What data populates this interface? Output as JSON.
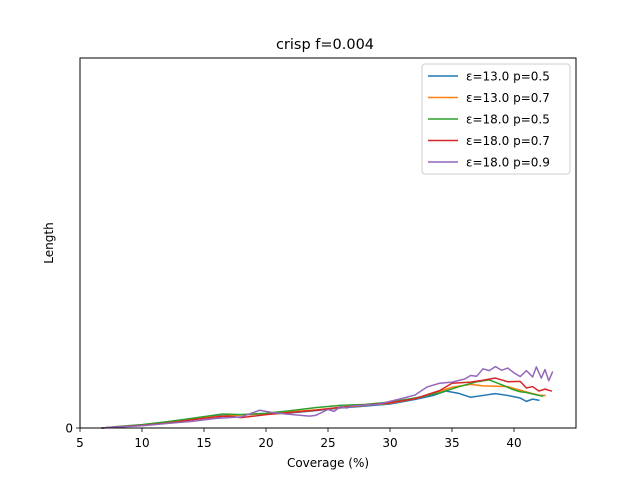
{
  "chart_data": {
    "type": "line",
    "title": "crisp f=0.004",
    "xlabel": "Coverage (%)",
    "ylabel": "Length",
    "xlim": [
      5,
      45
    ],
    "ylim": [
      0,
      1
    ],
    "xticks": [
      5,
      10,
      15,
      20,
      25,
      30,
      35,
      40
    ],
    "yticks": [
      0
    ],
    "legend_position": "top-right",
    "grid": false,
    "series": [
      {
        "name": "ε=13.0 p=0.5",
        "color": "#1f77b4",
        "points": [
          [
            6.8,
            0.0
          ],
          [
            8,
            0.003
          ],
          [
            10,
            0.008
          ],
          [
            12,
            0.015
          ],
          [
            14,
            0.024
          ],
          [
            16,
            0.033
          ],
          [
            18,
            0.036
          ],
          [
            20,
            0.038
          ],
          [
            22,
            0.041
          ],
          [
            24,
            0.047
          ],
          [
            26,
            0.054
          ],
          [
            28,
            0.059
          ],
          [
            30,
            0.065
          ],
          [
            32,
            0.077
          ],
          [
            33.5,
            0.088
          ],
          [
            34.5,
            0.1
          ],
          [
            35.5,
            0.094
          ],
          [
            36.5,
            0.083
          ],
          [
            37.5,
            0.088
          ],
          [
            38.5,
            0.093
          ],
          [
            39.5,
            0.088
          ],
          [
            40.5,
            0.081
          ],
          [
            41,
            0.072
          ],
          [
            41.5,
            0.078
          ],
          [
            42,
            0.075
          ]
        ]
      },
      {
        "name": "ε=13.0 p=0.7",
        "color": "#ff7f0e",
        "points": [
          [
            6.8,
            0.0
          ],
          [
            8,
            0.003
          ],
          [
            10,
            0.008
          ],
          [
            12,
            0.015
          ],
          [
            14,
            0.024
          ],
          [
            16,
            0.031
          ],
          [
            18,
            0.035
          ],
          [
            20,
            0.039
          ],
          [
            22,
            0.044
          ],
          [
            24,
            0.049
          ],
          [
            26,
            0.055
          ],
          [
            28,
            0.061
          ],
          [
            30,
            0.067
          ],
          [
            32,
            0.079
          ],
          [
            33.5,
            0.094
          ],
          [
            35,
            0.11
          ],
          [
            36.5,
            0.118
          ],
          [
            37.5,
            0.114
          ],
          [
            38.5,
            0.113
          ],
          [
            39.5,
            0.112
          ],
          [
            40.5,
            0.102
          ],
          [
            41.5,
            0.093
          ],
          [
            42,
            0.089
          ],
          [
            42.5,
            0.088
          ]
        ]
      },
      {
        "name": "ε=18.0 p=0.5",
        "color": "#2ca02c",
        "points": [
          [
            6.8,
            0.0
          ],
          [
            8,
            0.004
          ],
          [
            10,
            0.009
          ],
          [
            12,
            0.017
          ],
          [
            14,
            0.026
          ],
          [
            16.5,
            0.038
          ],
          [
            18,
            0.036
          ],
          [
            20,
            0.04
          ],
          [
            22,
            0.047
          ],
          [
            24,
            0.055
          ],
          [
            26,
            0.061
          ],
          [
            28,
            0.064
          ],
          [
            30,
            0.07
          ],
          [
            32,
            0.081
          ],
          [
            34,
            0.095
          ],
          [
            35.5,
            0.111
          ],
          [
            37,
            0.125
          ],
          [
            38,
            0.13
          ],
          [
            39,
            0.117
          ],
          [
            40,
            0.103
          ],
          [
            40.5,
            0.098
          ],
          [
            41,
            0.096
          ],
          [
            41.5,
            0.092
          ],
          [
            42,
            0.088
          ],
          [
            42.3,
            0.086
          ]
        ]
      },
      {
        "name": "ε=18.0 p=0.7",
        "color": "#d62728",
        "points": [
          [
            6.8,
            0.0
          ],
          [
            8,
            0.003
          ],
          [
            10,
            0.007
          ],
          [
            12,
            0.013
          ],
          [
            14,
            0.022
          ],
          [
            16,
            0.03
          ],
          [
            17,
            0.032
          ],
          [
            18,
            0.028
          ],
          [
            19,
            0.032
          ],
          [
            20,
            0.036
          ],
          [
            22,
            0.042
          ],
          [
            24,
            0.048
          ],
          [
            26,
            0.056
          ],
          [
            28,
            0.062
          ],
          [
            30,
            0.068
          ],
          [
            32,
            0.079
          ],
          [
            34,
            0.101
          ],
          [
            35,
            0.121
          ],
          [
            36.5,
            0.124
          ],
          [
            37.5,
            0.129
          ],
          [
            38.5,
            0.135
          ],
          [
            39.5,
            0.125
          ],
          [
            40.5,
            0.126
          ],
          [
            41,
            0.108
          ],
          [
            41.5,
            0.112
          ],
          [
            42,
            0.1
          ],
          [
            42.5,
            0.105
          ],
          [
            43,
            0.1
          ]
        ]
      },
      {
        "name": "ε=18.0 p=0.9",
        "color": "#9467bd",
        "points": [
          [
            6.8,
            0.0
          ],
          [
            8,
            0.003
          ],
          [
            10,
            0.006
          ],
          [
            12,
            0.012
          ],
          [
            14,
            0.018
          ],
          [
            16,
            0.026
          ],
          [
            18,
            0.03
          ],
          [
            19.5,
            0.048
          ],
          [
            20.5,
            0.042
          ],
          [
            21.5,
            0.038
          ],
          [
            22.5,
            0.035
          ],
          [
            23.5,
            0.032
          ],
          [
            24,
            0.034
          ],
          [
            25,
            0.05
          ],
          [
            25.5,
            0.045
          ],
          [
            26,
            0.058
          ],
          [
            26.5,
            0.054
          ],
          [
            27,
            0.06
          ],
          [
            28,
            0.062
          ],
          [
            29,
            0.064
          ],
          [
            30,
            0.072
          ],
          [
            31,
            0.08
          ],
          [
            32,
            0.089
          ],
          [
            33,
            0.111
          ],
          [
            34,
            0.121
          ],
          [
            35,
            0.124
          ],
          [
            36,
            0.132
          ],
          [
            36.5,
            0.142
          ],
          [
            37,
            0.14
          ],
          [
            37.5,
            0.16
          ],
          [
            38,
            0.155
          ],
          [
            38.5,
            0.166
          ],
          [
            39,
            0.156
          ],
          [
            39.5,
            0.162
          ],
          [
            40,
            0.149
          ],
          [
            40.5,
            0.139
          ],
          [
            41,
            0.155
          ],
          [
            41.5,
            0.138
          ],
          [
            41.8,
            0.165
          ],
          [
            42.2,
            0.135
          ],
          [
            42.5,
            0.158
          ],
          [
            42.8,
            0.128
          ],
          [
            43.1,
            0.151
          ]
        ]
      }
    ]
  }
}
